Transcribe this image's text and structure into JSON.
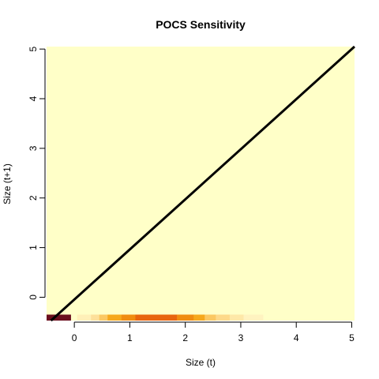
{
  "chart_data": {
    "type": "heatmap",
    "title": "POCS Sensitivity",
    "xlabel": "Size (t)",
    "ylabel": "Size (t+1)",
    "xlim": [
      -0.5,
      5.05
    ],
    "ylim": [
      -0.47,
      5.05
    ],
    "x_ticks": [
      "0",
      "1",
      "2",
      "3",
      "4",
      "5"
    ],
    "y_ticks": [
      "0",
      "1",
      "2",
      "3",
      "4",
      "5"
    ],
    "background_color": "#FFFFC8",
    "border": false,
    "grid": false,
    "legend": "none",
    "heat_row": {
      "y_range": [
        -0.47,
        -0.35
      ],
      "cells": [
        {
          "x0": -0.5,
          "x1": -0.06,
          "color": "#6B0F1E"
        },
        {
          "x0": -0.06,
          "x1": 0.05,
          "color": "#FFFFC8"
        },
        {
          "x0": 0.05,
          "x1": 0.3,
          "color": "#FFF0B8"
        },
        {
          "x0": 0.3,
          "x1": 0.45,
          "color": "#FDE09A"
        },
        {
          "x0": 0.45,
          "x1": 0.6,
          "color": "#FBC862"
        },
        {
          "x0": 0.6,
          "x1": 0.85,
          "color": "#F6A81C"
        },
        {
          "x0": 0.85,
          "x1": 1.1,
          "color": "#F08C10"
        },
        {
          "x0": 1.1,
          "x1": 1.85,
          "color": "#E8650E"
        },
        {
          "x0": 1.85,
          "x1": 2.15,
          "color": "#F08C10"
        },
        {
          "x0": 2.15,
          "x1": 2.35,
          "color": "#F6A81C"
        },
        {
          "x0": 2.35,
          "x1": 2.55,
          "color": "#FBC862"
        },
        {
          "x0": 2.55,
          "x1": 2.8,
          "color": "#FDD98A"
        },
        {
          "x0": 2.8,
          "x1": 3.05,
          "color": "#FEE8A8"
        },
        {
          "x0": 3.05,
          "x1": 3.4,
          "color": "#FFF3C0"
        }
      ]
    },
    "reference_line": {
      "x": [
        -0.42,
        5.05
      ],
      "y": [
        -0.47,
        5.05
      ],
      "color": "#000000"
    }
  }
}
